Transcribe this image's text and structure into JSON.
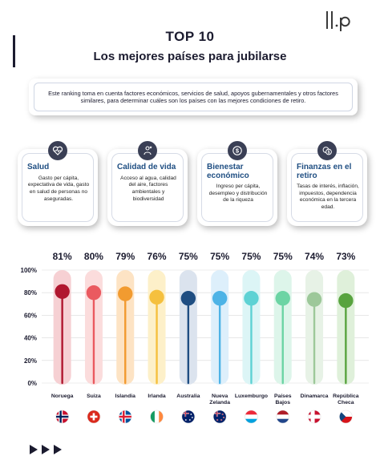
{
  "header": {
    "title": "TOP 10",
    "subtitle": "Los mejores países para jubilarse"
  },
  "intro_text": "Este ranking toma en cuenta factores económicos, servicios de salud, apoyos gubernamentales y otros factores similares, para determinar cuáles son los países con las mejores condiciones de retiro.",
  "cards": [
    {
      "title": "Salud",
      "desc": "Gasto per cápita, expectativa de vida, gasto en salud de personas no aseguradas.",
      "icon": "health-heart-icon"
    },
    {
      "title": "Calidad de vida",
      "desc": "Acceso al agua, calidad del aire, factores ambientales y biodiversidad",
      "icon": "person-star-icon"
    },
    {
      "title": "Bienestar económico",
      "desc": "Ingreso per cápita, desempleo y distribución de la riqueza",
      "icon": "dollar-coin-icon"
    },
    {
      "title": "Finanzas en el retiro",
      "desc": "Tasas de interés, inflación, impuestos, dependencia económica en la tercera edad.",
      "icon": "coins-icon"
    }
  ],
  "chart_data": {
    "type": "lollipop",
    "title": "",
    "xlabel": "",
    "ylabel": "",
    "ylim": [
      0,
      100
    ],
    "yticks": [
      "0%",
      "20%",
      "40%",
      "60%",
      "80%",
      "100%"
    ],
    "grid": true,
    "categories": [
      "Noruega",
      "Suiza",
      "Islandia",
      "Irlanda",
      "Australia",
      "Nueva Zelanda",
      "Luxemburgo",
      "Países Bajos",
      "Dinamarca",
      "República Checa"
    ],
    "values": [
      81,
      80,
      79,
      76,
      75,
      75,
      75,
      75,
      74,
      73
    ],
    "value_labels": [
      "81%",
      "80%",
      "79%",
      "76%",
      "75%",
      "75%",
      "75%",
      "75%",
      "74%",
      "73%"
    ],
    "colors": [
      "#b0172f",
      "#ea5a60",
      "#f29b30",
      "#f5c03e",
      "#1f4e82",
      "#4db3e6",
      "#5ed2d4",
      "#6cd4a4",
      "#9dc89a",
      "#58a33f"
    ],
    "bg_colors": [
      "#f6d0d3",
      "#fbdcdc",
      "#fde3c4",
      "#fdf0c9",
      "#dbe3ee",
      "#ddeffb",
      "#dcf5f6",
      "#ddf5ea",
      "#e7f2e6",
      "#dff0da"
    ],
    "flags": [
      "norway-flag-icon",
      "switzerland-flag-icon",
      "iceland-flag-icon",
      "ireland-flag-icon",
      "australia-flag-icon",
      "new-zealand-flag-icon",
      "luxembourg-flag-icon",
      "netherlands-flag-icon",
      "denmark-flag-icon",
      "czech-flag-icon"
    ]
  }
}
